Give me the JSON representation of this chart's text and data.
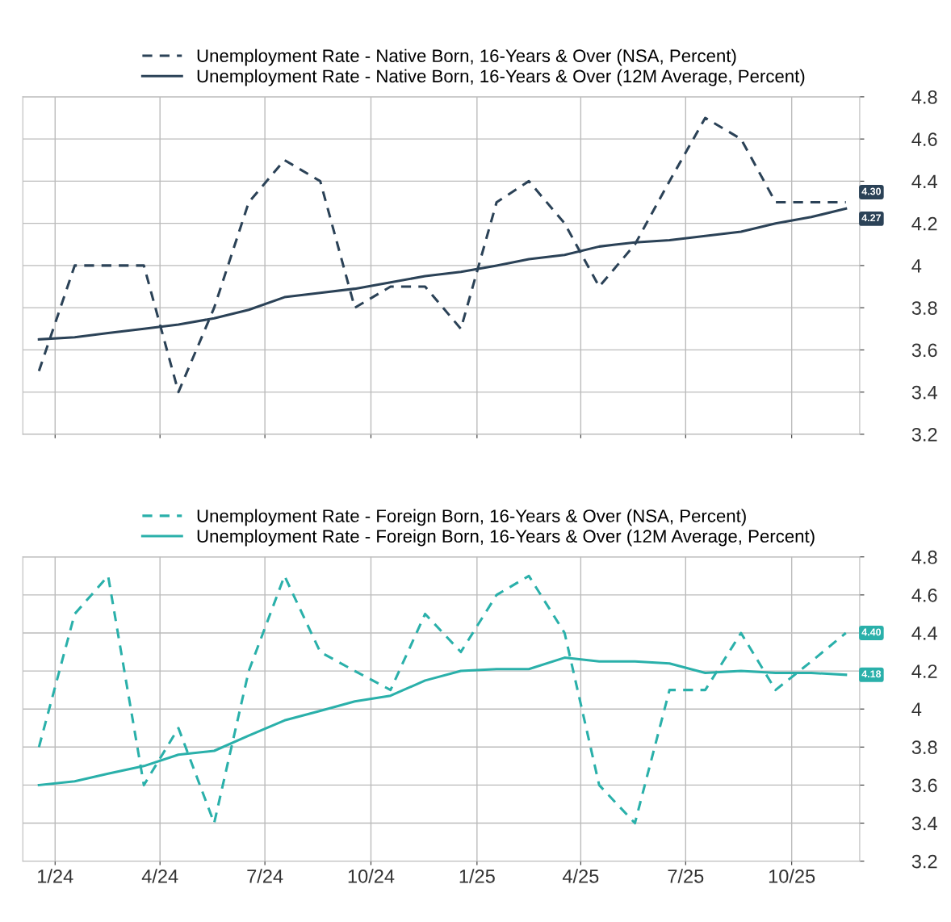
{
  "chart_data": [
    {
      "type": "line",
      "x": [
        "2024-01",
        "2024-02",
        "2024-03",
        "2024-04",
        "2024-05",
        "2024-06",
        "2024-07",
        "2024-08",
        "2024-09",
        "2024-10",
        "2024-11",
        "2024-12",
        "2025-01",
        "2025-02",
        "2025-03",
        "2025-04",
        "2025-05",
        "2025-06",
        "2025-07",
        "2025-08",
        "2025-09",
        "2025-10",
        "2025-11",
        "2025-12"
      ],
      "series": [
        {
          "name": "Unemployment Rate - Native Born, 16-Years & Over (NSA, Percent)",
          "color": "#2b4257",
          "line_style": "dashed",
          "values": [
            3.5,
            4.0,
            4.0,
            4.0,
            3.4,
            3.8,
            4.3,
            4.5,
            4.4,
            3.8,
            3.9,
            3.9,
            3.7,
            4.3,
            4.4,
            4.2,
            3.9,
            4.1,
            4.4,
            4.7,
            4.6,
            4.3,
            4.3,
            4.3
          ],
          "value_labels": [
            null,
            null,
            null,
            null,
            null,
            null,
            null,
            null,
            null,
            null,
            null,
            null,
            null,
            null,
            null,
            null,
            null,
            null,
            null,
            null,
            null,
            null,
            null,
            "4.30"
          ]
        },
        {
          "name": "Unemployment Rate - Native Born, 16-Years & Over (12M Average, Percent)",
          "color": "#2b4257",
          "line_style": "solid",
          "values": [
            3.65,
            3.66,
            3.68,
            3.7,
            3.72,
            3.75,
            3.79,
            3.85,
            3.87,
            3.89,
            3.92,
            3.95,
            3.97,
            4.0,
            4.03,
            4.05,
            4.09,
            4.11,
            4.12,
            4.14,
            4.16,
            4.2,
            4.23,
            4.27
          ],
          "value_labels": [
            null,
            null,
            null,
            null,
            null,
            null,
            null,
            null,
            null,
            null,
            null,
            null,
            null,
            null,
            null,
            null,
            null,
            null,
            null,
            null,
            null,
            null,
            null,
            "4.27"
          ]
        }
      ],
      "xlim": [
        "2023-12-18",
        "2025-12-13"
      ],
      "xticks": [
        {
          "value": "2024-01-15",
          "label": null
        },
        {
          "value": "2024-04-15",
          "label": null
        },
        {
          "value": "2024-07-15",
          "label": null
        },
        {
          "value": "2024-10-15",
          "label": null
        },
        {
          "value": "2025-01-15",
          "label": null
        },
        {
          "value": "2025-04-15",
          "label": null
        },
        {
          "value": "2025-07-15",
          "label": null
        },
        {
          "value": "2025-10-15",
          "label": null
        }
      ],
      "ylim": [
        3.2,
        4.8
      ],
      "yticks": [
        3.2,
        3.4,
        3.6,
        3.8,
        4,
        4.2,
        4.4,
        4.6,
        4.8
      ],
      "grid": true,
      "legend": "top left",
      "tick_labels": "y"
    },
    {
      "type": "line",
      "x": [
        "2024-01",
        "2024-02",
        "2024-03",
        "2024-04",
        "2024-05",
        "2024-06",
        "2024-07",
        "2024-08",
        "2024-09",
        "2024-10",
        "2024-11",
        "2024-12",
        "2025-01",
        "2025-02",
        "2025-03",
        "2025-04",
        "2025-05",
        "2025-06",
        "2025-07",
        "2025-08",
        "2025-09",
        "2025-10",
        "2025-11",
        "2025-12"
      ],
      "series": [
        {
          "name": "Unemployment Rate - Foreign Born, 16-Years & Over (NSA, Percent)",
          "color": "#2ab0aa",
          "line_style": "dashed",
          "values": [
            3.8,
            4.5,
            4.7,
            3.6,
            3.9,
            3.4,
            4.2,
            4.7,
            4.3,
            4.2,
            4.1,
            4.5,
            4.3,
            4.6,
            4.7,
            4.4,
            3.6,
            3.4,
            4.1,
            4.1,
            4.4,
            4.1,
            4.25,
            4.4
          ],
          "value_labels": [
            null,
            null,
            null,
            null,
            null,
            null,
            null,
            null,
            null,
            null,
            null,
            null,
            null,
            null,
            null,
            null,
            null,
            null,
            null,
            null,
            null,
            null,
            null,
            "4.40"
          ]
        },
        {
          "name": "Unemployment Rate - Foreign Born, 16-Years & Over (12M Average, Percent)",
          "color": "#2ab0aa",
          "line_style": "solid",
          "values": [
            3.6,
            3.62,
            3.66,
            3.7,
            3.76,
            3.78,
            3.86,
            3.94,
            3.99,
            4.04,
            4.07,
            4.15,
            4.2,
            4.21,
            4.21,
            4.27,
            4.25,
            4.25,
            4.24,
            4.19,
            4.2,
            4.19,
            4.19,
            4.18
          ],
          "value_labels": [
            null,
            null,
            null,
            null,
            null,
            null,
            null,
            null,
            null,
            null,
            null,
            null,
            null,
            null,
            null,
            null,
            null,
            null,
            null,
            null,
            null,
            null,
            null,
            "4.18"
          ]
        }
      ],
      "xlim": [
        "2023-12-18",
        "2025-12-13"
      ],
      "xticks": [
        {
          "value": "2024-01-15",
          "label": "1/24"
        },
        {
          "value": "2024-04-15",
          "label": "4/24"
        },
        {
          "value": "2024-07-15",
          "label": "7/24"
        },
        {
          "value": "2024-10-15",
          "label": "10/24"
        },
        {
          "value": "2025-01-15",
          "label": "1/25"
        },
        {
          "value": "2025-04-15",
          "label": "4/25"
        },
        {
          "value": "2025-07-15",
          "label": "7/25"
        },
        {
          "value": "2025-10-15",
          "label": "10/25"
        }
      ],
      "ylim": [
        3.2,
        4.8
      ],
      "yticks": [
        3.2,
        3.4,
        3.6,
        3.8,
        4,
        4.2,
        4.4,
        4.6,
        4.8
      ],
      "grid": true,
      "legend": "top left"
    }
  ]
}
